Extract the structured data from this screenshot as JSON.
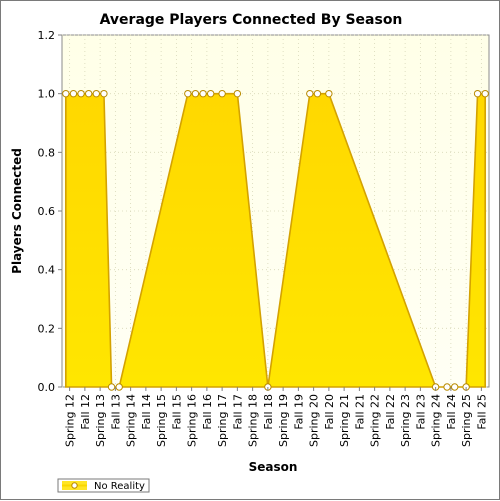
{
  "chart_data": {
    "type": "area",
    "title": "Average Players Connected By Season",
    "xlabel": "Season",
    "ylabel": "Players Connected",
    "ylim": [
      0,
      1.2
    ],
    "yticks": [
      "0.0",
      "0.2",
      "0.4",
      "0.6",
      "0.8",
      "1.0",
      "1.2"
    ],
    "categories": [
      "Spring 12",
      "Fall 12",
      "Spring 13",
      "Fall 13",
      "Spring 14",
      "Fall 14",
      "Spring 15",
      "Fall 15",
      "Spring 16",
      "Fall 16",
      "Spring 17",
      "Fall 17",
      "Spring 18",
      "Fall 18",
      "Spring 19",
      "Fall 19",
      "Spring 20",
      "Fall 20",
      "Spring 21",
      "Fall 21",
      "Spring 22",
      "Fall 22",
      "Spring 23",
      "Fall 23",
      "Spring 24",
      "Fall 24",
      "Spring 25",
      "Fall 25"
    ],
    "grid": true,
    "legend_position": "bottom-left",
    "series": [
      {
        "name": "No Reality",
        "color": "#ffe000",
        "line_color": "#d4a200",
        "points": [
          {
            "x": "Spring 12",
            "y": 1.0
          },
          {
            "x": "Spring 12",
            "y": 1.0
          },
          {
            "x": "Fall 12",
            "y": 1.0
          },
          {
            "x": "Fall 12",
            "y": 1.0
          },
          {
            "x": "Spring 13",
            "y": 1.0
          },
          {
            "x": "Spring 13",
            "y": 1.0
          },
          {
            "x": "Fall 13",
            "y": 0.0
          },
          {
            "x": "Fall 13",
            "y": 0.0
          },
          {
            "x": "Spring 16",
            "y": 1.0
          },
          {
            "x": "Spring 16",
            "y": 1.0
          },
          {
            "x": "Fall 16",
            "y": 1.0
          },
          {
            "x": "Fall 16",
            "y": 1.0
          },
          {
            "x": "Spring 17",
            "y": 1.0
          },
          {
            "x": "Fall 17",
            "y": 1.0
          },
          {
            "x": "Fall 18",
            "y": 0.0
          },
          {
            "x": "Spring 20",
            "y": 1.0
          },
          {
            "x": "Spring 20",
            "y": 1.0
          },
          {
            "x": "Fall 20",
            "y": 1.0
          },
          {
            "x": "Spring 24",
            "y": 0.0
          },
          {
            "x": "Fall 24",
            "y": 0.0
          },
          {
            "x": "Fall 24",
            "y": 0.0
          },
          {
            "x": "Spring 25",
            "y": 0.0
          },
          {
            "x": "Fall 25",
            "y": 1.0
          },
          {
            "x": "Fall 25",
            "y": 1.0
          }
        ]
      }
    ]
  }
}
